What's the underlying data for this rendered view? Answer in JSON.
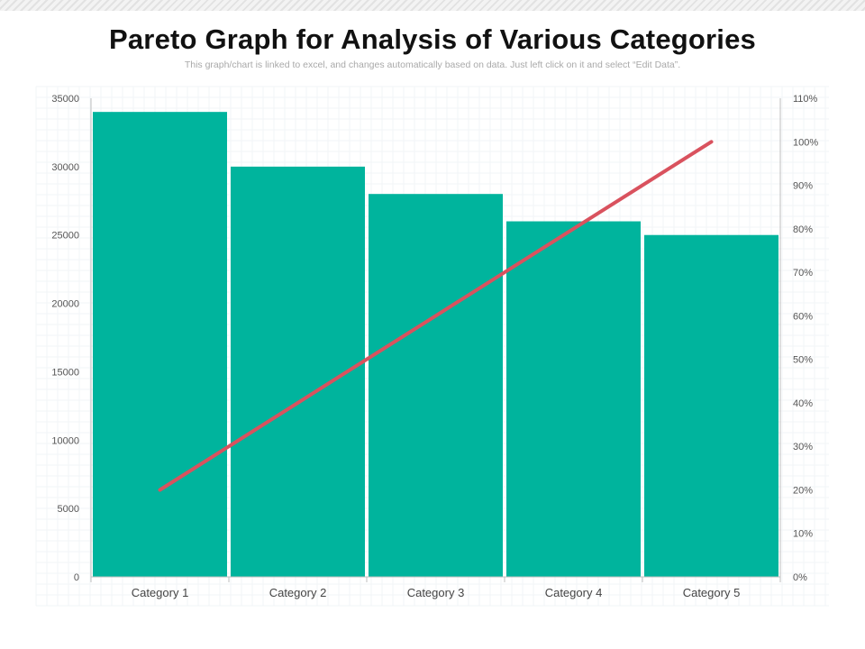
{
  "header": {
    "title": "Pareto Graph for Analysis of Various Categories",
    "subtitle": "This graph/chart is linked to excel, and changes automatically based on data. Just left click on it and select “Edit Data”."
  },
  "chart_data": {
    "type": "bar",
    "categories": [
      "Category 1",
      "Category 2",
      "Category 3",
      "Category 4",
      "Category 5"
    ],
    "series": [
      {
        "type": "bar",
        "axis": "left",
        "color": "#00b49d",
        "values": [
          34000,
          30000,
          28000,
          26000,
          25000
        ]
      },
      {
        "type": "line",
        "axis": "right",
        "color": "#d9525e",
        "values": [
          20,
          40,
          60,
          80,
          100
        ]
      }
    ],
    "left_axis": {
      "min": 0,
      "max": 35000,
      "ticks": [
        "0",
        "5000",
        "10000",
        "15000",
        "20000",
        "25000",
        "30000",
        "35000"
      ]
    },
    "right_axis": {
      "min": 0,
      "max": 110,
      "ticks": [
        "0%",
        "10%",
        "20%",
        "30%",
        "40%",
        "50%",
        "60%",
        "70%",
        "80%",
        "90%",
        "100%",
        "110%"
      ]
    },
    "grid": true,
    "legend": "none"
  }
}
